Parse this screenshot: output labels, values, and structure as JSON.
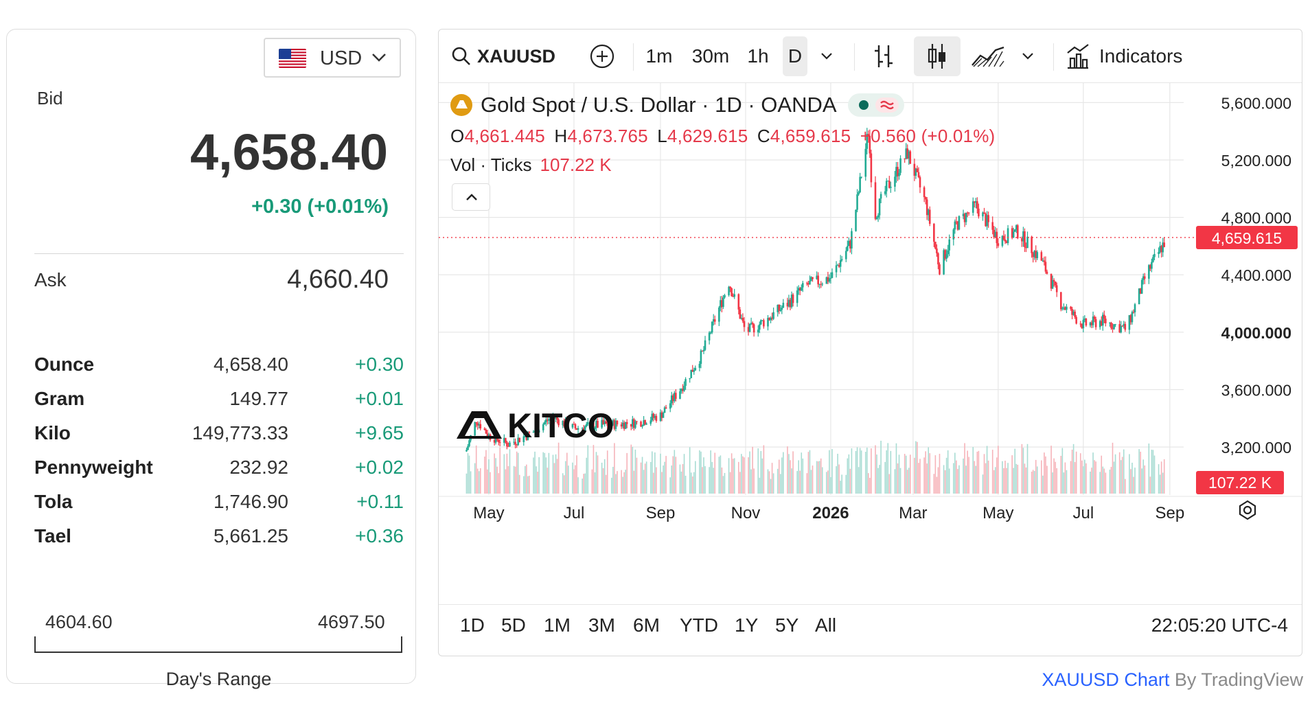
{
  "currency": {
    "label": "USD"
  },
  "quote": {
    "bid_label": "Bid",
    "bid": "4,658.40",
    "change": "+0.30 (+0.01%)",
    "ask_label": "Ask",
    "ask": "4,660.40"
  },
  "units": [
    {
      "name": "Ounce",
      "price": "4,658.40",
      "change": "+0.30"
    },
    {
      "name": "Gram",
      "price": "149.77",
      "change": "+0.01"
    },
    {
      "name": "Kilo",
      "price": "149,773.33",
      "change": "+9.65"
    },
    {
      "name": "Pennyweight",
      "price": "232.92",
      "change": "+0.02"
    },
    {
      "name": "Tola",
      "price": "1,746.90",
      "change": "+0.11"
    },
    {
      "name": "Tael",
      "price": "5,661.25",
      "change": "+0.36"
    }
  ],
  "days_range": {
    "low": "4604.60",
    "high": "4697.50",
    "label": "Day's Range"
  },
  "toolbar": {
    "symbol": "XAUUSD",
    "intervals": [
      "1m",
      "30m",
      "1h",
      "D"
    ],
    "indicators_label": "Indicators"
  },
  "legend": {
    "title": "Gold Spot / U.S. Dollar · 1D · OANDA",
    "o_label": "O",
    "o": "4,661.445",
    "h_label": "H",
    "h": "4,673.765",
    "l_label": "L",
    "l": "4,629.615",
    "c_label": "C",
    "c": "4,659.615",
    "change": "+0.560 (+0.01%)",
    "vol_label": "Vol · Ticks",
    "vol": "107.22 K"
  },
  "watermark": "KITCO",
  "price_badge": "4,659.615",
  "volume_badge": "107.22 K",
  "ranges": [
    "1D",
    "5D",
    "1M",
    "3M",
    "6M",
    "YTD",
    "1Y",
    "5Y",
    "All"
  ],
  "clock": "22:05:20 UTC-4",
  "attribution": {
    "link": "XAUUSD Chart",
    "rest": " By TradingView"
  },
  "colors": {
    "up": "#22ab94",
    "down": "#f23645",
    "positive_text": "#189a78",
    "badge": "#f23645",
    "gold": "#e09b12"
  },
  "chart_data": {
    "type": "candlestick",
    "title": "Gold Spot / U.S. Dollar · 1D · OANDA",
    "x_tick_labels": [
      "May",
      "Jul",
      "Sep",
      "Nov",
      "2026",
      "Mar",
      "May",
      "Jul",
      "Sep"
    ],
    "y_tick_labels": [
      "5,600.000",
      "5,200.000",
      "4,800.000",
      "4,400.000",
      "4,000.000",
      "3,600.000",
      "3,200.000"
    ],
    "ylim": [
      2880,
      5640
    ],
    "last_price": 4659.615,
    "grid": true,
    "series": [
      {
        "name": "XAUUSD",
        "close_path": [
          [
            "2025-04-15",
            3180
          ],
          [
            "2025-04-22",
            3390
          ],
          [
            "2025-05-01",
            3280
          ],
          [
            "2025-05-15",
            3220
          ],
          [
            "2025-06-01",
            3300
          ],
          [
            "2025-06-15",
            3410
          ],
          [
            "2025-07-01",
            3330
          ],
          [
            "2025-07-15",
            3350
          ],
          [
            "2025-08-01",
            3360
          ],
          [
            "2025-08-15",
            3370
          ],
          [
            "2025-09-01",
            3420
          ],
          [
            "2025-09-15",
            3600
          ],
          [
            "2025-10-01",
            3850
          ],
          [
            "2025-10-20",
            4350
          ],
          [
            "2025-11-01",
            4000
          ],
          [
            "2025-11-15",
            4080
          ],
          [
            "2025-12-01",
            4200
          ],
          [
            "2025-12-15",
            4330
          ],
          [
            "2026-01-01",
            4380
          ],
          [
            "2026-01-15",
            4620
          ],
          [
            "2026-01-28",
            5400
          ],
          [
            "2026-02-01",
            4800
          ],
          [
            "2026-02-10",
            5000
          ],
          [
            "2026-02-25",
            5250
          ],
          [
            "2026-03-10",
            4900
          ],
          [
            "2026-03-20",
            4450
          ],
          [
            "2026-04-01",
            4750
          ],
          [
            "2026-04-15",
            4880
          ],
          [
            "2026-05-01",
            4650
          ],
          [
            "2026-05-15",
            4700
          ],
          [
            "2026-06-01",
            4500
          ],
          [
            "2026-06-15",
            4200
          ],
          [
            "2026-07-01",
            4050
          ],
          [
            "2026-07-15",
            4080
          ],
          [
            "2026-08-01",
            4020
          ],
          [
            "2026-08-15",
            4400
          ],
          [
            "2026-08-30",
            4660
          ]
        ]
      }
    ],
    "volume": {
      "name": "Vol · Ticks",
      "last": "107.22 K"
    }
  }
}
